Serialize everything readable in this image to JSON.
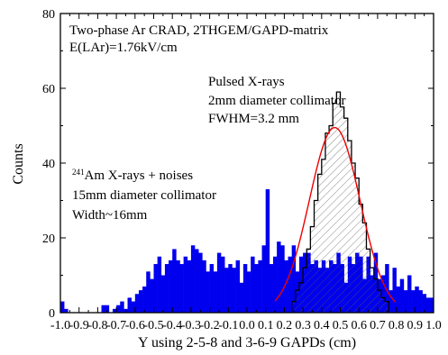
{
  "chart_data": {
    "type": "bar",
    "xlabel": "Y using 2-5-8 and 3-6-9 GAPDs (cm)",
    "ylabel": "Counts",
    "xlim": [
      -1.0,
      1.0
    ],
    "ylim": [
      0,
      80
    ],
    "x_ticks": [
      "-1.0",
      "-0.9",
      "-0.8",
      "-0.7",
      "-0.6",
      "-0.5",
      "-0.4",
      "-0.3",
      "-0.2",
      "-0.1",
      "0.0",
      "0.1",
      "0.2",
      "0.3",
      "0.4",
      "0.5",
      "0.6",
      "0.7",
      "0.8",
      "0.9",
      "1.0"
    ],
    "y_ticks": [
      "0",
      "20",
      "40",
      "60",
      "80"
    ],
    "bin_width": 0.02,
    "grid": false,
    "annotations": {
      "title_line1": "Two-phase Ar CRAD, 2THGEM/GAPD-matrix",
      "title_line2": "E(LAr)=1.76kV/cm",
      "pulsed_line1": "Pulsed X-rays",
      "pulsed_line2": "2mm diameter collimator",
      "pulsed_line3": "FWHM=3.2 mm",
      "am_sup": "241",
      "am_line1": "Am X-rays + noises",
      "am_line2": "15mm diameter collimator",
      "am_line3": "Width~16mm"
    },
    "series": [
      {
        "style": "solid-fill",
        "color": "#0000ee",
        "x_start": -0.99,
        "values": [
          3,
          1,
          0,
          0,
          0,
          0,
          0,
          0,
          0,
          0,
          0,
          2,
          2,
          0,
          1,
          2,
          3,
          1,
          4,
          3,
          5,
          6,
          7,
          11,
          9,
          13,
          15,
          10,
          13,
          14,
          17,
          14,
          13,
          15,
          14,
          18,
          17,
          16,
          14,
          11,
          13,
          11,
          16,
          15,
          12,
          13,
          12,
          14,
          8,
          13,
          11,
          15,
          13,
          14,
          18,
          33,
          13,
          15,
          19,
          18,
          14,
          15,
          18,
          11,
          15,
          16,
          16,
          13,
          14,
          12,
          14,
          12,
          14,
          13,
          16,
          13,
          8,
          15,
          13,
          16,
          15,
          9,
          15,
          10,
          16,
          9,
          10,
          13,
          6,
          12,
          7,
          9,
          6,
          10,
          6,
          7,
          6,
          5,
          4,
          4
        ]
      },
      {
        "style": "hatched-outline",
        "color": "#000000",
        "x_start": 0.25,
        "values": [
          3,
          6,
          8,
          12,
          17,
          23,
          30,
          37,
          41,
          48,
          50,
          56,
          59,
          55,
          52,
          46,
          40,
          36,
          29,
          24,
          17,
          12,
          9,
          6,
          4,
          3
        ]
      },
      {
        "style": "gaussian-fit",
        "color": "#ee0000",
        "center": 0.47,
        "sigma": 0.136,
        "amplitude": 49.5
      }
    ]
  }
}
